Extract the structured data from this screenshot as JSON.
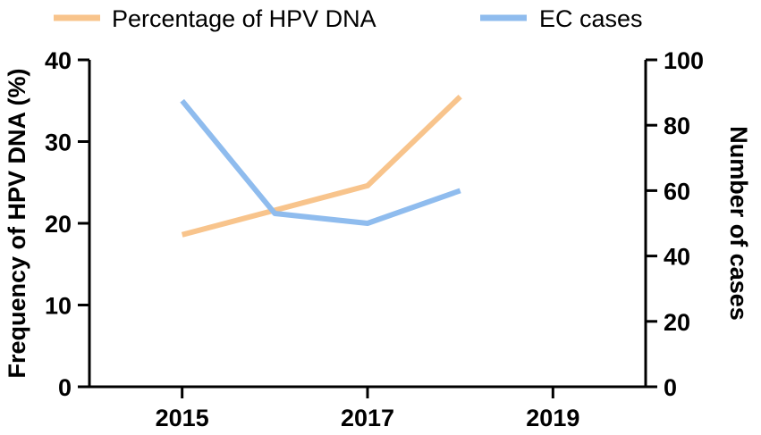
{
  "chart_data": {
    "type": "line",
    "title": "",
    "xlabel": "",
    "x_ticks": [
      2015,
      2017,
      2019
    ],
    "xlim": [
      2014,
      2020
    ],
    "y_left": {
      "label": "Frequency of HPV DNA (%)",
      "lim": [
        0,
        40
      ],
      "ticks": [
        0,
        10,
        20,
        30,
        40
      ]
    },
    "y_right": {
      "label": "Number of cases",
      "lim": [
        0,
        100
      ],
      "ticks": [
        0,
        20,
        40,
        60,
        80,
        100
      ]
    },
    "legend_position": "top",
    "series": [
      {
        "name": "Percentage of HPV DNA",
        "axis": "left",
        "color": "#F8C48C",
        "x": [
          2015,
          2017,
          2018
        ],
        "y": [
          18.6,
          24.6,
          35.5
        ]
      },
      {
        "name": "EC cases",
        "axis": "right",
        "color": "#8FBCEE",
        "x": [
          2015,
          2016,
          2017,
          2018
        ],
        "y": [
          87.5,
          53,
          50,
          60
        ]
      }
    ]
  }
}
